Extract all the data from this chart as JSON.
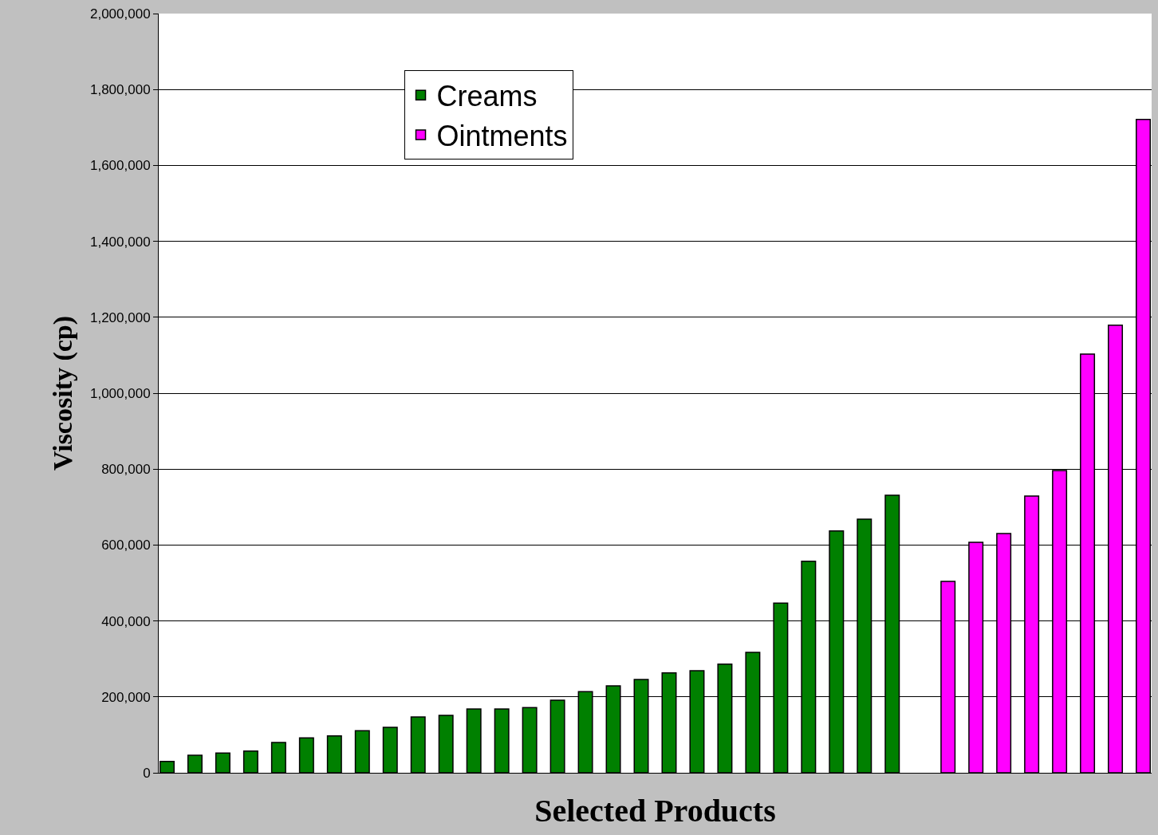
{
  "chart_data": {
    "type": "bar",
    "xlabel": "Selected Products",
    "ylabel": "Viscosity (cp)",
    "categories": [
      null,
      null,
      null,
      null,
      null,
      null,
      null,
      null,
      null,
      null,
      null,
      null,
      null,
      null,
      null,
      null,
      null,
      null,
      null,
      null,
      null,
      null,
      null,
      null,
      null,
      null,
      null,
      null,
      null,
      null,
      null,
      null,
      null,
      null,
      null,
      null
    ],
    "series": [
      {
        "name": "Creams",
        "color": "#008000",
        "values": [
          30000,
          46000,
          52000,
          57000,
          80000,
          92000,
          97000,
          111000,
          120000,
          147000,
          151000,
          168000,
          168000,
          172000,
          191000,
          214000,
          229000,
          246000,
          263000,
          269000,
          286000,
          317000,
          447000,
          557000,
          637000,
          668000,
          731000,
          null,
          null,
          null,
          null,
          null,
          null,
          null,
          null,
          null
        ]
      },
      {
        "name": "Ointments",
        "color": "#ff00ff",
        "values": [
          null,
          null,
          null,
          null,
          null,
          null,
          null,
          null,
          null,
          null,
          null,
          null,
          null,
          null,
          null,
          null,
          null,
          null,
          null,
          null,
          null,
          null,
          null,
          null,
          null,
          null,
          null,
          null,
          504000,
          607000,
          630000,
          729000,
          796000,
          1103000,
          1179000,
          1721000
        ]
      }
    ],
    "ylim": [
      0,
      2000000
    ],
    "yticks": [
      {
        "value": 0,
        "label": "0"
      },
      {
        "value": 200000,
        "label": "200,000"
      },
      {
        "value": 400000,
        "label": "400,000"
      },
      {
        "value": 600000,
        "label": "600,000"
      },
      {
        "value": 800000,
        "label": "800,000"
      },
      {
        "value": 1000000,
        "label": "1,000,000"
      },
      {
        "value": 1200000,
        "label": "1,200,000"
      },
      {
        "value": 1400000,
        "label": "1,400,000"
      },
      {
        "value": 1600000,
        "label": "1,600,000"
      },
      {
        "value": 1800000,
        "label": "1,800,000"
      },
      {
        "value": 2000000,
        "label": "2,000,000"
      }
    ],
    "grid": "y",
    "legend": "top left"
  }
}
